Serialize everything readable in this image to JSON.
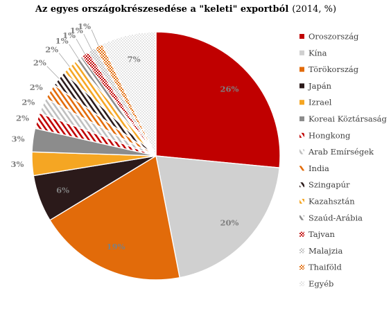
{
  "chart_data": {
    "type": "pie",
    "title": "Az egyes országokrészesedése a \"keleti\" exportból",
    "subtitle": "(2014, %)",
    "legend_position": "right",
    "slices": [
      {
        "label": "Oroszország",
        "value": 26,
        "display": "26%",
        "color": "#c00000",
        "pattern": "solid"
      },
      {
        "label": "Kína",
        "value": 20,
        "display": "20%",
        "color": "#d0d0d0",
        "pattern": "solid"
      },
      {
        "label": "Törökország",
        "value": 19,
        "display": "19%",
        "color": "#e26b0a",
        "pattern": "solid"
      },
      {
        "label": "Japán",
        "value": 6,
        "display": "6%",
        "color": "#2b1a1a",
        "pattern": "solid"
      },
      {
        "label": "Izrael",
        "value": 3,
        "display": "3%",
        "color": "#f5a623",
        "pattern": "solid"
      },
      {
        "label": "Koreai Köztársaság",
        "value": 3,
        "display": "3%",
        "color": "#8c8c8c",
        "pattern": "solid"
      },
      {
        "label": "Hongkong",
        "value": 2,
        "display": "2%",
        "color": "#c00000",
        "pattern": "stripes"
      },
      {
        "label": "Arab Emírségek",
        "value": 2,
        "display": "2%",
        "color": "#bfbfbf",
        "pattern": "stripes"
      },
      {
        "label": "India",
        "value": 2,
        "display": "2%",
        "color": "#e26b0a",
        "pattern": "stripes"
      },
      {
        "label": "Szingapúr",
        "value": 2,
        "display": "2%",
        "color": "#2b1a1a",
        "pattern": "stripes"
      },
      {
        "label": "Kazahsztán",
        "value": 2,
        "display": "2%",
        "color": "#f5a623",
        "pattern": "stripes"
      },
      {
        "label": "Szaúd-Arábia",
        "value": 1,
        "display": "1%",
        "color": "#8c8c8c",
        "pattern": "stripes"
      },
      {
        "label": "Tajvan",
        "value": 1,
        "display": "1%",
        "color": "#c00000",
        "pattern": "checker"
      },
      {
        "label": "Malajzia",
        "value": 1,
        "display": "1%",
        "color": "#bfbfbf",
        "pattern": "checker"
      },
      {
        "label": "Thaiföld",
        "value": 1,
        "display": "1%",
        "color": "#e26b0a",
        "pattern": "checker"
      },
      {
        "label": "Egyéb",
        "value": 7,
        "display": "7%",
        "color": "#7f7f7f",
        "pattern": "dots"
      }
    ]
  }
}
